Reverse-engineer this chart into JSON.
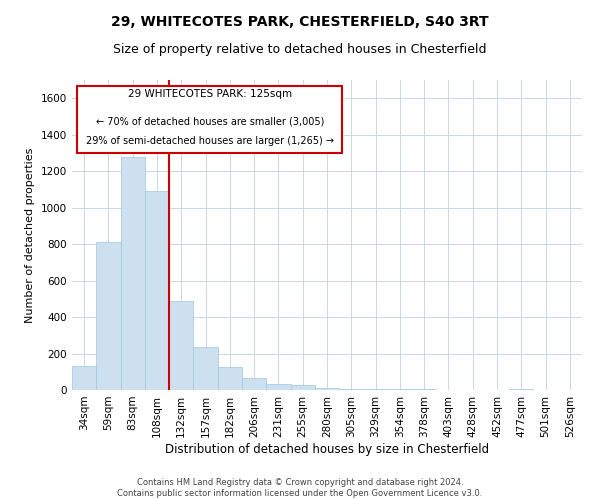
{
  "title1": "29, WHITECOTES PARK, CHESTERFIELD, S40 3RT",
  "title2": "Size of property relative to detached houses in Chesterfield",
  "xlabel": "Distribution of detached houses by size in Chesterfield",
  "ylabel": "Number of detached properties",
  "footer1": "Contains HM Land Registry data © Crown copyright and database right 2024.",
  "footer2": "Contains public sector information licensed under the Open Government Licence v3.0.",
  "annotation_line1": "29 WHITECOTES PARK: 125sqm",
  "annotation_line2": "← 70% of detached houses are smaller (3,005)",
  "annotation_line3": "29% of semi-detached houses are larger (1,265) →",
  "bar_color": "#cce0f0",
  "bar_edge_color": "#a0c4e0",
  "vline_color": "#cc0000",
  "categories": [
    "34sqm",
    "59sqm",
    "83sqm",
    "108sqm",
    "132sqm",
    "157sqm",
    "182sqm",
    "206sqm",
    "231sqm",
    "255sqm",
    "280sqm",
    "305sqm",
    "329sqm",
    "354sqm",
    "378sqm",
    "403sqm",
    "428sqm",
    "452sqm",
    "477sqm",
    "501sqm",
    "526sqm"
  ],
  "values": [
    130,
    810,
    1280,
    1090,
    490,
    235,
    125,
    65,
    35,
    25,
    12,
    8,
    5,
    5,
    5,
    0,
    0,
    0,
    5,
    0,
    0
  ],
  "ylim": [
    0,
    1700
  ],
  "yticks": [
    0,
    200,
    400,
    600,
    800,
    1000,
    1200,
    1400,
    1600
  ],
  "grid_color": "#c8d8e8",
  "background_color": "#ffffff",
  "title1_fontsize": 10,
  "title2_fontsize": 9,
  "axis_fontsize": 7.5,
  "ylabel_fontsize": 8,
  "xlabel_fontsize": 8.5,
  "footer_fontsize": 6,
  "ann_fontsize1": 7.5,
  "ann_fontsize2": 7
}
